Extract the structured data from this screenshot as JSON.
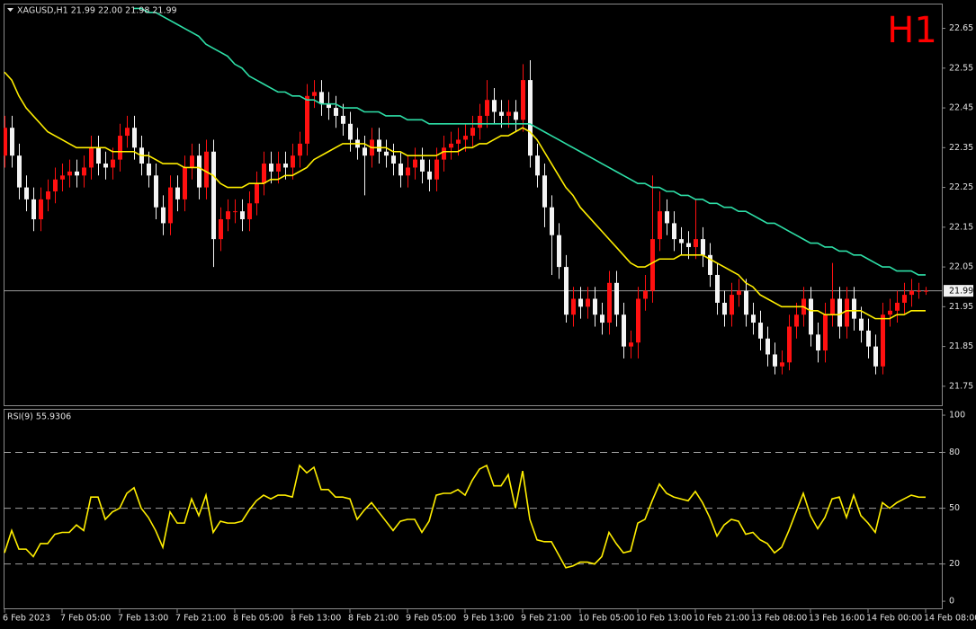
{
  "chart_data": [
    {
      "type": "candlestick",
      "title": "XAGUSD,H1  21.99 22.00 21.98 21.99",
      "timeframe_label": "H1",
      "categories": [
        "6 Feb 2023",
        null,
        null,
        null,
        null,
        null,
        null,
        null,
        "7 Feb 05:00",
        null,
        null,
        null,
        null,
        null,
        null,
        null,
        "7 Feb 13:00",
        null,
        null,
        null,
        null,
        null,
        null,
        null,
        "7 Feb 21:00",
        null,
        null,
        null,
        null,
        null,
        null,
        null,
        "8 Feb 05:00",
        null,
        null,
        null,
        null,
        null,
        null,
        null,
        "8 Feb 13:00",
        null,
        null,
        null,
        null,
        null,
        null,
        null,
        "8 Feb 21:00",
        null,
        null,
        null,
        null,
        null,
        null,
        null,
        "9 Feb 05:00",
        null,
        null,
        null,
        null,
        null,
        null,
        null,
        "9 Feb 13:00",
        null,
        null,
        null,
        null,
        null,
        null,
        null,
        "9 Feb 21:00",
        null,
        null,
        null,
        null,
        null,
        null,
        null,
        "10 Feb 05:00",
        null,
        null,
        null,
        null,
        null,
        null,
        null,
        "10 Feb 13:00",
        null,
        null,
        null,
        null,
        null,
        null,
        null,
        "10 Feb 21:00",
        null,
        null,
        null,
        null,
        null,
        null,
        null,
        "13 Feb 08:00",
        null,
        null,
        null,
        null,
        null,
        null,
        null,
        "13 Feb 16:00",
        null,
        null,
        null,
        null,
        null,
        null,
        null,
        "14 Feb 00:00",
        null,
        null,
        null,
        null,
        null,
        null,
        null,
        "14 Feb 08:00"
      ],
      "open": [
        22.33,
        22.4,
        22.33,
        22.25,
        22.22,
        22.17,
        22.22,
        22.24,
        22.27,
        22.28,
        22.29,
        22.28,
        22.3,
        22.35,
        22.31,
        22.3,
        22.32,
        22.38,
        22.4,
        22.35,
        22.31,
        22.28,
        22.2,
        22.16,
        22.25,
        22.22,
        22.3,
        22.33,
        22.25,
        22.34,
        22.12,
        22.17,
        22.19,
        22.19,
        22.17,
        22.21,
        22.26,
        22.31,
        22.29,
        22.31,
        22.3,
        22.33,
        22.36,
        22.48,
        22.49,
        22.46,
        22.45,
        22.43,
        22.41,
        22.37,
        22.35,
        22.33,
        22.37,
        22.34,
        22.33,
        22.31,
        22.28,
        22.3,
        22.32,
        22.29,
        22.27,
        22.32,
        22.35,
        22.36,
        22.37,
        22.38,
        22.4,
        22.43,
        22.47,
        22.44,
        22.43,
        22.44,
        22.42,
        22.52,
        22.33,
        22.28,
        22.2,
        22.13,
        22.05,
        21.93,
        21.97,
        21.95,
        21.97,
        21.93,
        21.91,
        22.01,
        21.93,
        21.85,
        21.86,
        21.97,
        21.99,
        22.12,
        22.19,
        22.16,
        22.12,
        22.11,
        22.1,
        22.12,
        22.08,
        22.03,
        21.96,
        21.93,
        21.98,
        21.99,
        21.93,
        21.91,
        21.87,
        21.83,
        21.8,
        21.81,
        21.9,
        21.93,
        21.97,
        21.88,
        21.84,
        21.93,
        21.97,
        21.9,
        21.97,
        21.92,
        21.89,
        21.85,
        21.8,
        21.93,
        21.94,
        21.96,
        21.98,
        21.99,
        21.99
      ],
      "high": [
        22.43,
        22.43,
        22.36,
        22.28,
        22.25,
        22.25,
        22.27,
        22.3,
        22.31,
        22.32,
        22.32,
        22.33,
        22.38,
        22.38,
        22.34,
        22.35,
        22.41,
        22.43,
        22.43,
        22.38,
        22.34,
        22.31,
        22.23,
        22.28,
        22.28,
        22.33,
        22.36,
        22.36,
        22.37,
        22.37,
        22.2,
        22.22,
        22.22,
        22.22,
        22.24,
        22.29,
        22.34,
        22.34,
        22.34,
        22.34,
        22.36,
        22.39,
        22.51,
        22.52,
        22.52,
        22.49,
        22.48,
        22.46,
        22.44,
        22.4,
        22.38,
        22.4,
        22.4,
        22.37,
        22.36,
        22.34,
        22.33,
        22.35,
        22.35,
        22.32,
        22.35,
        22.38,
        22.39,
        22.4,
        22.41,
        22.43,
        22.46,
        22.52,
        22.5,
        22.47,
        22.47,
        22.47,
        22.56,
        22.57,
        22.36,
        22.31,
        22.23,
        22.16,
        22.08,
        22.0,
        22.0,
        22.0,
        22.0,
        21.96,
        22.04,
        22.04,
        21.96,
        21.89,
        22.0,
        22.03,
        22.28,
        22.24,
        22.22,
        22.19,
        22.15,
        22.14,
        22.22,
        22.15,
        22.11,
        22.06,
        21.99,
        22.01,
        22.02,
        22.02,
        21.96,
        21.94,
        21.9,
        21.86,
        21.84,
        21.93,
        21.96,
        22.0,
        22.0,
        21.91,
        21.96,
        22.06,
        22.0,
        22.0,
        22.0,
        21.95,
        21.92,
        21.88,
        21.96,
        21.97,
        21.99,
        22.01,
        22.02,
        22.01,
        22.0
      ],
      "low": [
        22.3,
        22.3,
        22.22,
        22.19,
        22.14,
        22.14,
        22.19,
        22.21,
        22.24,
        22.25,
        22.25,
        22.25,
        22.27,
        22.28,
        22.27,
        22.27,
        22.29,
        22.35,
        22.32,
        22.28,
        22.25,
        22.17,
        22.13,
        22.13,
        22.19,
        22.19,
        22.27,
        22.22,
        22.22,
        22.05,
        22.09,
        22.14,
        22.16,
        22.14,
        22.14,
        22.18,
        22.23,
        22.26,
        22.26,
        22.27,
        22.27,
        22.3,
        22.33,
        22.45,
        22.43,
        22.42,
        22.4,
        22.38,
        22.34,
        22.32,
        22.23,
        22.3,
        22.31,
        22.3,
        22.28,
        22.25,
        22.25,
        22.27,
        22.26,
        22.24,
        22.24,
        22.29,
        22.32,
        22.33,
        22.34,
        22.35,
        22.37,
        22.4,
        22.41,
        22.4,
        22.4,
        22.39,
        22.39,
        22.3,
        22.25,
        22.15,
        22.03,
        22.02,
        21.91,
        21.9,
        21.92,
        21.92,
        21.9,
        21.88,
        21.88,
        21.9,
        21.82,
        21.82,
        21.82,
        21.94,
        21.96,
        22.09,
        22.13,
        22.09,
        22.08,
        22.07,
        22.07,
        22.05,
        22.0,
        21.93,
        21.9,
        21.9,
        21.95,
        21.9,
        21.88,
        21.84,
        21.8,
        21.78,
        21.78,
        21.79,
        21.87,
        21.9,
        21.85,
        21.81,
        21.81,
        21.9,
        21.87,
        21.87,
        21.89,
        21.86,
        21.82,
        21.78,
        21.78,
        21.9,
        21.91,
        21.93,
        21.95,
        21.97,
        21.98
      ],
      "close": [
        22.4,
        22.33,
        22.25,
        22.22,
        22.17,
        22.22,
        22.24,
        22.27,
        22.28,
        22.29,
        22.28,
        22.3,
        22.35,
        22.31,
        22.3,
        22.32,
        22.38,
        22.4,
        22.35,
        22.31,
        22.28,
        22.2,
        22.16,
        22.25,
        22.22,
        22.3,
        22.33,
        22.25,
        22.34,
        22.12,
        22.17,
        22.19,
        22.19,
        22.17,
        22.21,
        22.26,
        22.31,
        22.29,
        22.31,
        22.3,
        22.33,
        22.36,
        22.48,
        22.49,
        22.46,
        22.45,
        22.43,
        22.41,
        22.37,
        22.35,
        22.33,
        22.37,
        22.34,
        22.33,
        22.31,
        22.28,
        22.3,
        22.32,
        22.29,
        22.27,
        22.32,
        22.35,
        22.36,
        22.37,
        22.38,
        22.4,
        22.43,
        22.47,
        22.44,
        22.43,
        22.44,
        22.42,
        22.52,
        22.33,
        22.28,
        22.2,
        22.13,
        22.05,
        21.93,
        21.97,
        21.95,
        21.97,
        21.93,
        21.91,
        22.01,
        21.93,
        21.85,
        21.86,
        21.97,
        21.99,
        22.12,
        22.19,
        22.16,
        22.12,
        22.11,
        22.1,
        22.12,
        22.08,
        22.03,
        21.96,
        21.93,
        21.98,
        21.99,
        21.93,
        21.91,
        21.87,
        21.83,
        21.8,
        21.81,
        21.9,
        21.93,
        21.97,
        21.88,
        21.84,
        21.93,
        21.97,
        21.9,
        21.97,
        21.92,
        21.89,
        21.85,
        21.8,
        21.93,
        21.94,
        21.96,
        21.98,
        21.99,
        21.99,
        21.99
      ],
      "bull_color": "#ff1010",
      "bear_color": "#f4f4f4",
      "overlays": [
        {
          "color": "#ffee00",
          "values": [
            22.54,
            22.52,
            22.48,
            22.45,
            22.43,
            22.41,
            22.39,
            22.38,
            22.37,
            22.36,
            22.35,
            22.35,
            22.35,
            22.35,
            22.35,
            22.34,
            22.34,
            22.34,
            22.34,
            22.33,
            22.33,
            22.32,
            22.31,
            22.31,
            22.31,
            22.3,
            22.3,
            22.3,
            22.29,
            22.28,
            22.26,
            22.25,
            22.25,
            22.25,
            22.26,
            22.26,
            22.26,
            22.27,
            22.27,
            22.28,
            22.28,
            22.29,
            22.3,
            22.32,
            22.33,
            22.34,
            22.35,
            22.36,
            22.36,
            22.36,
            22.36,
            22.35,
            22.35,
            22.35,
            22.34,
            22.34,
            22.33,
            22.33,
            22.33,
            22.33,
            22.33,
            22.34,
            22.34,
            22.34,
            22.35,
            22.35,
            22.36,
            22.36,
            22.37,
            22.38,
            22.38,
            22.39,
            22.4,
            22.39,
            22.37,
            22.34,
            22.31,
            22.28,
            22.25,
            22.23,
            22.2,
            22.18,
            22.16,
            22.14,
            22.12,
            22.1,
            22.08,
            22.06,
            22.05,
            22.05,
            22.06,
            22.07,
            22.07,
            22.07,
            22.08,
            22.08,
            22.08,
            22.08,
            22.07,
            22.06,
            22.05,
            22.04,
            22.03,
            22.01,
            22.0,
            21.98,
            21.97,
            21.96,
            21.95,
            21.95,
            21.95,
            21.95,
            21.94,
            21.94,
            21.93,
            21.93,
            21.93,
            21.94,
            21.94,
            21.94,
            21.93,
            21.92,
            21.92,
            21.92,
            21.93,
            21.93,
            21.94,
            21.94,
            21.94
          ]
        },
        {
          "color": "#2ee0a8",
          "values": [
            null,
            null,
            null,
            null,
            null,
            null,
            null,
            null,
            null,
            null,
            null,
            null,
            null,
            null,
            null,
            null,
            null,
            null,
            22.7,
            22.7,
            22.69,
            22.69,
            22.68,
            22.67,
            22.66,
            22.65,
            22.64,
            22.63,
            22.61,
            22.6,
            22.59,
            22.58,
            22.56,
            22.55,
            22.53,
            22.52,
            22.51,
            22.5,
            22.49,
            22.49,
            22.48,
            22.48,
            22.47,
            22.47,
            22.46,
            22.46,
            22.46,
            22.45,
            22.45,
            22.45,
            22.44,
            22.44,
            22.44,
            22.43,
            22.43,
            22.43,
            22.42,
            22.42,
            22.42,
            22.41,
            22.41,
            22.41,
            22.41,
            22.41,
            22.41,
            22.41,
            22.41,
            22.41,
            22.41,
            22.41,
            22.41,
            22.41,
            22.41,
            22.41,
            22.4,
            22.39,
            22.38,
            22.37,
            22.36,
            22.35,
            22.34,
            22.33,
            22.32,
            22.31,
            22.3,
            22.29,
            22.28,
            22.27,
            22.26,
            22.26,
            22.25,
            22.25,
            22.24,
            22.24,
            22.23,
            22.23,
            22.22,
            22.22,
            22.21,
            22.21,
            22.2,
            22.2,
            22.19,
            22.19,
            22.18,
            22.17,
            22.16,
            22.16,
            22.15,
            22.14,
            22.13,
            22.12,
            22.11,
            22.11,
            22.1,
            22.1,
            22.09,
            22.09,
            22.08,
            22.08,
            22.07,
            22.06,
            22.05,
            22.05,
            22.04,
            22.04,
            22.04,
            22.03,
            22.03
          ]
        }
      ],
      "ylim": [
        21.7,
        22.71
      ],
      "yticks": [
        22.65,
        22.55,
        22.45,
        22.35,
        22.25,
        22.15,
        22.05,
        21.95,
        21.85,
        21.75
      ],
      "last_price": 21.99
    },
    {
      "type": "line",
      "title": "RSI(9) 55.9306",
      "color": "#ffee00",
      "values": [
        26,
        38,
        28,
        28,
        24,
        31,
        31,
        36,
        37,
        37,
        41,
        38,
        56,
        56,
        44,
        48,
        50,
        58,
        61,
        50,
        45,
        38,
        29,
        48,
        42,
        42,
        55,
        46,
        57,
        37,
        43,
        42,
        42,
        43,
        49,
        54,
        57,
        55,
        57,
        57,
        56,
        73,
        69,
        72,
        60,
        60,
        56,
        56,
        55,
        44,
        49,
        53,
        48,
        43,
        38,
        43,
        44,
        44,
        37,
        43,
        57,
        58,
        58,
        60,
        57,
        65,
        71,
        73,
        62,
        62,
        68,
        50,
        70,
        44,
        33,
        32,
        32,
        25,
        18,
        19,
        21,
        21,
        20,
        24,
        37,
        31,
        26,
        27,
        42,
        44,
        54,
        63,
        58,
        56,
        55,
        54,
        59,
        53,
        45,
        35,
        41,
        44,
        43,
        36,
        37,
        33,
        31,
        26,
        29,
        38,
        48,
        58,
        46,
        39,
        45,
        55,
        56,
        45,
        57,
        46,
        42,
        37,
        53,
        50,
        53,
        55,
        57,
        56,
        55.93
      ],
      "ylim": [
        -4.3,
        103.4
      ],
      "yticks": [
        100,
        80,
        50,
        20,
        0
      ],
      "levels": [
        80,
        50,
        20
      ]
    }
  ]
}
